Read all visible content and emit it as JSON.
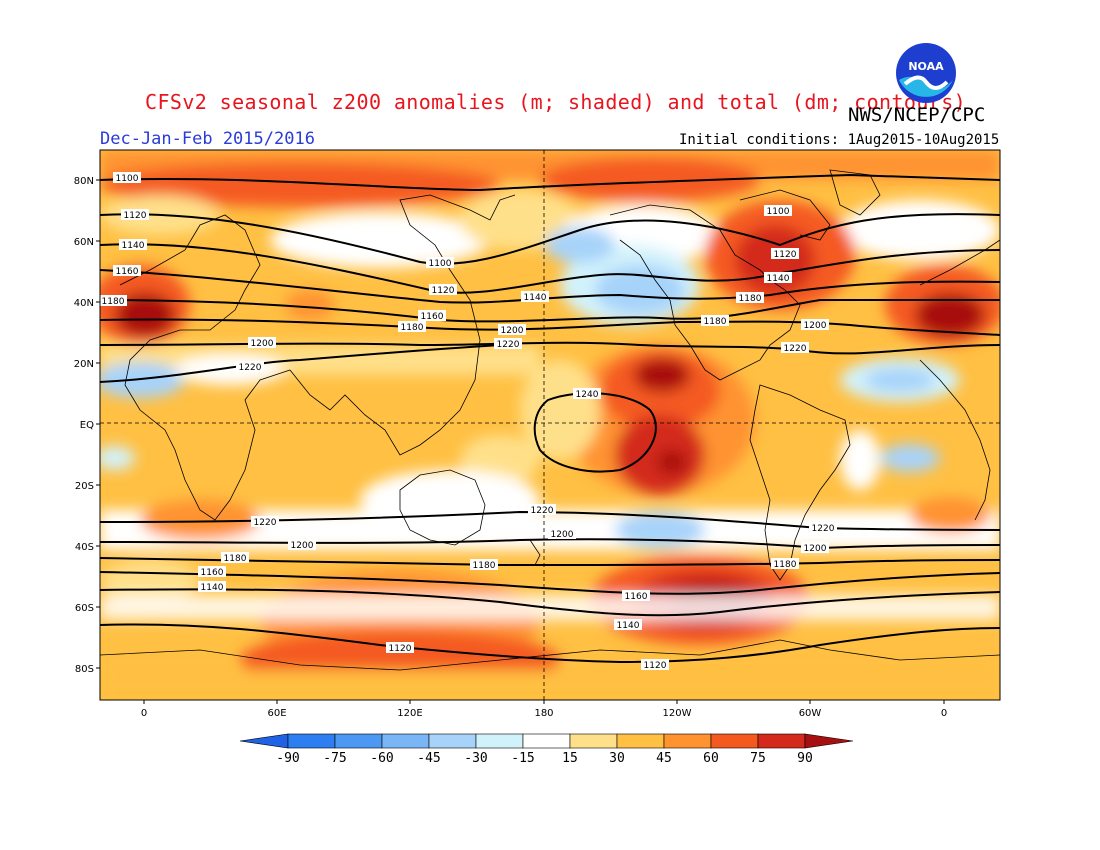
{
  "header": {
    "title": "CFSv2 seasonal z200 anomalies (m; shaded) and total (dm; contours)",
    "subtitle": "Dec-Jan-Feb 2015/2016",
    "agency": "NWS/NCEP/CPC",
    "initial_conditions": "Initial conditions: 1Aug2015-10Aug2015",
    "logo_text": "NOAA"
  },
  "axes": {
    "lat_labels": [
      "80N",
      "60N",
      "40N",
      "20N",
      "EQ",
      "20S",
      "40S",
      "60S",
      "80S"
    ],
    "lon_labels": [
      "0",
      "60E",
      "120E",
      "180",
      "120W",
      "60W",
      "0"
    ]
  },
  "colorbar": {
    "ticks": [
      "-90",
      "-75",
      "-60",
      "-45",
      "-30",
      "-15",
      "15",
      "30",
      "45",
      "60",
      "75",
      "90"
    ],
    "colors": [
      "#1f62e6",
      "#2d7ef0",
      "#4c98f2",
      "#7ab6f6",
      "#a7d3fa",
      "#d2f2fb",
      "#ffffff",
      "#ffe08a",
      "#ffc043",
      "#ff9330",
      "#f45a20",
      "#d32a1c",
      "#a80f10"
    ]
  },
  "contour_labels": [
    "1100",
    "1120",
    "1140",
    "1160",
    "1180",
    "1200",
    "1220",
    "1240"
  ]
}
